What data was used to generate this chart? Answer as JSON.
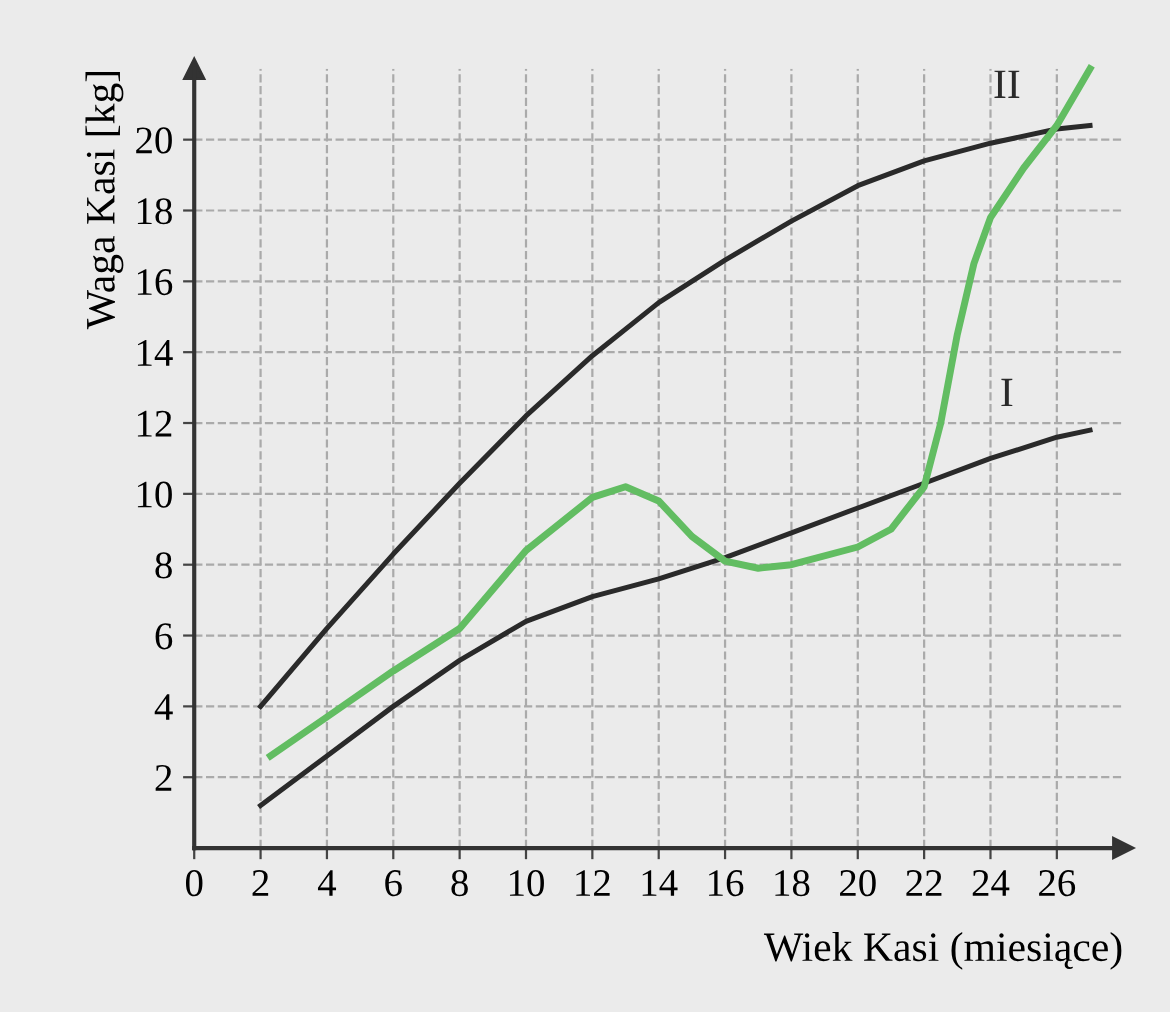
{
  "chart_data": {
    "type": "line",
    "xlabel": "Wiek Kasi (miesiące)",
    "ylabel": "Waga Kasi [kg]",
    "xlim": [
      0,
      28
    ],
    "ylim": [
      0,
      22
    ],
    "xticks": [
      0,
      2,
      4,
      6,
      8,
      10,
      12,
      14,
      16,
      18,
      20,
      22,
      24,
      26
    ],
    "yticks": [
      2,
      4,
      6,
      8,
      10,
      12,
      14,
      16,
      18,
      20
    ],
    "grid": true,
    "legend": false,
    "marker": "none",
    "line_style": "solid",
    "series": [
      {
        "name": "II",
        "color": "#2a2a2a",
        "x": [
          2,
          4,
          6,
          8,
          10,
          12,
          14,
          16,
          18,
          20,
          22,
          24,
          26,
          27
        ],
        "values": [
          4,
          6.2,
          8.3,
          10.3,
          12.2,
          13.9,
          15.4,
          16.6,
          17.7,
          18.7,
          19.4,
          19.9,
          20.3,
          20.4
        ]
      },
      {
        "name": "I",
        "color": "#2a2a2a",
        "x": [
          2,
          4,
          6,
          8,
          10,
          12,
          14,
          16,
          18,
          20,
          22,
          24,
          26,
          27
        ],
        "values": [
          1.2,
          2.6,
          4,
          5.3,
          6.4,
          7.1,
          7.6,
          8.2,
          8.9,
          9.6,
          10.3,
          11,
          11.6,
          11.8
        ]
      },
      {
        "color": "#62bd62",
        "x": [
          2.3,
          4,
          6,
          8,
          10,
          12,
          13,
          14,
          15,
          16,
          17,
          18,
          20,
          21,
          22,
          22.5,
          23,
          23.5,
          24,
          25,
          26,
          27
        ],
        "values": [
          2.6,
          3.7,
          5,
          6.2,
          8.4,
          9.9,
          10.2,
          9.8,
          8.8,
          8.1,
          7.9,
          8,
          8.5,
          9,
          10.2,
          12,
          14.5,
          16.5,
          17.8,
          19.2,
          20.4,
          22
        ]
      }
    ]
  }
}
